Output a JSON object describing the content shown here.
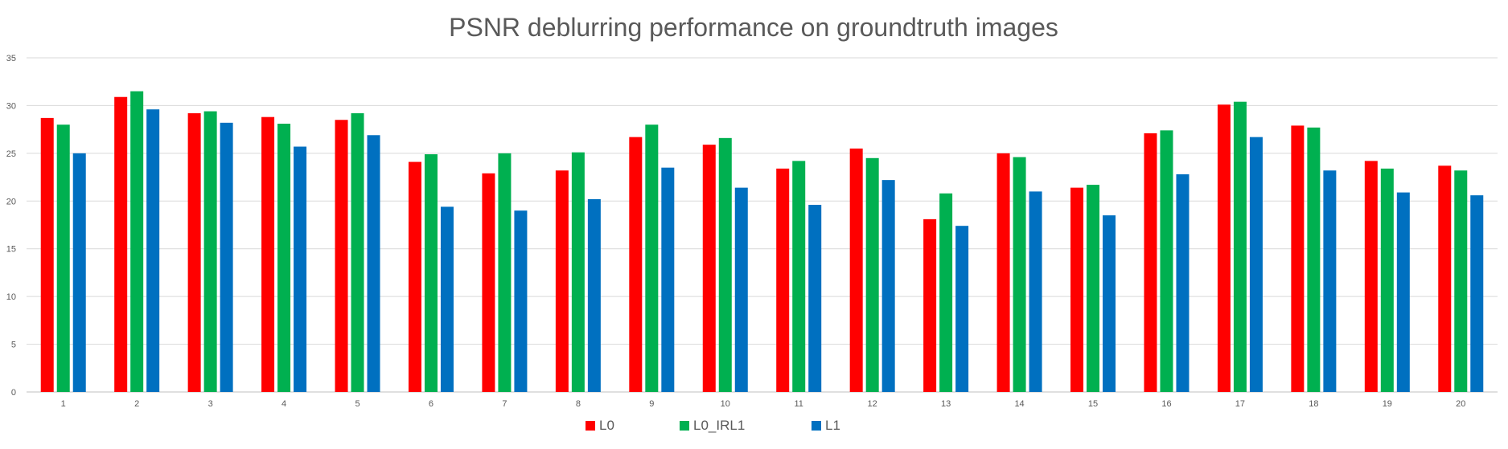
{
  "chart_data": {
    "type": "bar",
    "title": "PSNR deblurring performance on groundtruth images",
    "xlabel": "",
    "ylabel": "",
    "categories": [
      "1",
      "2",
      "3",
      "4",
      "5",
      "6",
      "7",
      "8",
      "9",
      "10",
      "11",
      "12",
      "13",
      "14",
      "15",
      "16",
      "17",
      "18",
      "19",
      "20"
    ],
    "series": [
      {
        "name": "L0",
        "color": "#ff0000",
        "values": [
          28.7,
          30.9,
          29.2,
          28.8,
          28.5,
          24.1,
          22.9,
          23.2,
          26.7,
          25.9,
          23.4,
          25.5,
          18.1,
          25.0,
          21.4,
          27.1,
          30.1,
          27.9,
          24.2,
          23.7
        ]
      },
      {
        "name": "L0_IRL1",
        "color": "#00b050",
        "values": [
          28.0,
          31.5,
          29.4,
          28.1,
          29.2,
          24.9,
          25.0,
          25.1,
          28.0,
          26.6,
          24.2,
          24.5,
          20.8,
          24.6,
          21.7,
          27.4,
          30.4,
          27.7,
          23.4,
          23.2
        ]
      },
      {
        "name": "L1",
        "color": "#0070c0",
        "values": [
          25.0,
          29.6,
          28.2,
          25.7,
          26.9,
          19.4,
          19.0,
          20.2,
          23.5,
          21.4,
          19.6,
          22.2,
          17.4,
          21.0,
          18.5,
          22.8,
          26.7,
          23.2,
          20.9,
          20.6
        ]
      }
    ],
    "y_ticks": [
      "0",
      "5",
      "10",
      "15",
      "20",
      "25",
      "30",
      "35"
    ],
    "ylim": [
      0,
      35
    ],
    "grid": true,
    "legend_position": "bottom"
  }
}
